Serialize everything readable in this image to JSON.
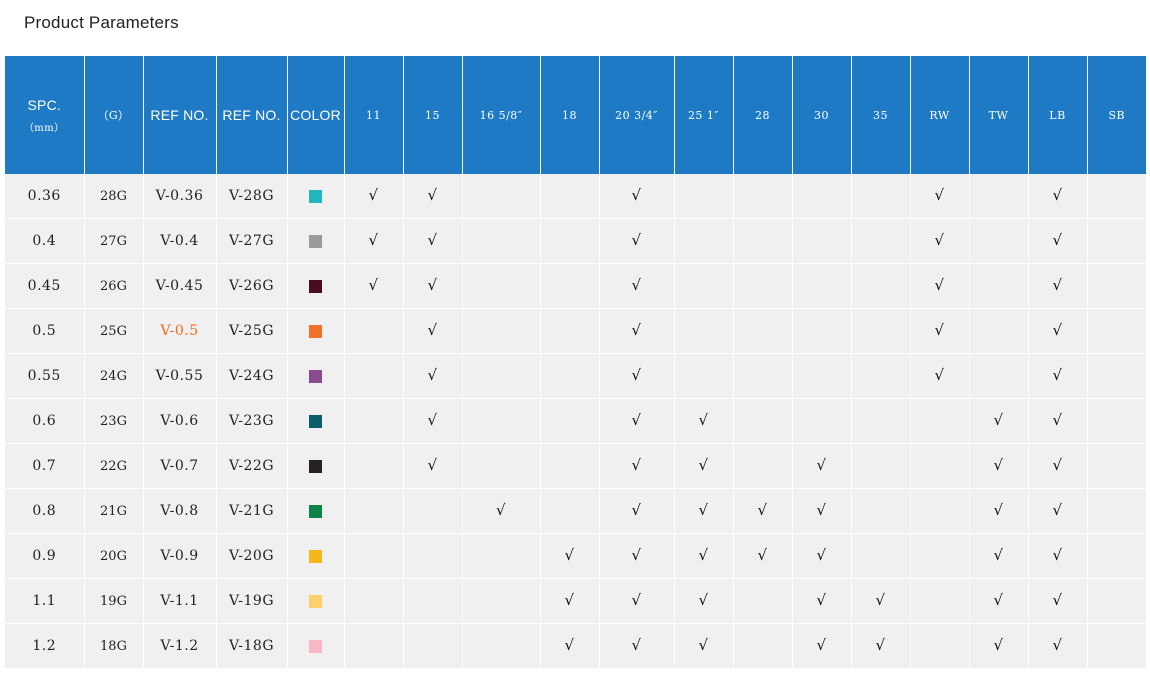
{
  "title": "Product Parameters",
  "headers": {
    "spc": "SPC.",
    "spc_unit": "（mm）",
    "g": "（G）",
    "ref1": "REF NO.",
    "ref2": "REF NO.",
    "color": "COLOR",
    "sizes": [
      "11",
      "15",
      "16 5/8″",
      "18",
      "20 3/4″",
      "25 1″",
      "28",
      "30",
      "35",
      "RW",
      "TW",
      "LB",
      "SB"
    ]
  },
  "check_symbol": "√",
  "rows": [
    {
      "spc": "0.36",
      "g": "28G",
      "ref1": "V-0.36",
      "ref2": "V-28G",
      "color": "#21b5bd",
      "checks": [
        1,
        1,
        0,
        0,
        1,
        0,
        0,
        0,
        0,
        1,
        0,
        1,
        0
      ]
    },
    {
      "spc": "0.4",
      "g": "27G",
      "ref1": "V-0.4",
      "ref2": "V-27G",
      "color": "#9a9a9c",
      "checks": [
        1,
        1,
        0,
        0,
        1,
        0,
        0,
        0,
        0,
        1,
        0,
        1,
        0
      ]
    },
    {
      "spc": "0.45",
      "g": "26G",
      "ref1": "V-0.45",
      "ref2": "V-26G",
      "color": "#4a0d1f",
      "checks": [
        1,
        1,
        0,
        0,
        1,
        0,
        0,
        0,
        0,
        1,
        0,
        1,
        0
      ]
    },
    {
      "spc": "0.5",
      "g": "25G",
      "ref1": "V-0.5",
      "ref2": "V-25G",
      "color": "#f0702a",
      "checks": [
        0,
        1,
        0,
        0,
        1,
        0,
        0,
        0,
        0,
        1,
        0,
        1,
        0
      ],
      "ref1_color": "#ee6b1a"
    },
    {
      "spc": "0.55",
      "g": "24G",
      "ref1": "V-0.55",
      "ref2": "V-24G",
      "color": "#8a4a8e",
      "checks": [
        0,
        1,
        0,
        0,
        1,
        0,
        0,
        0,
        0,
        1,
        0,
        1,
        0
      ]
    },
    {
      "spc": "0.6",
      "g": "23G",
      "ref1": "V-0.6",
      "ref2": "V-23G",
      "color": "#0c5c6a",
      "checks": [
        0,
        1,
        0,
        0,
        1,
        1,
        0,
        0,
        0,
        0,
        1,
        1,
        0
      ]
    },
    {
      "spc": "0.7",
      "g": "22G",
      "ref1": "V-0.7",
      "ref2": "V-22G",
      "color": "#262224",
      "checks": [
        0,
        1,
        0,
        0,
        1,
        1,
        0,
        1,
        0,
        0,
        1,
        1,
        0
      ]
    },
    {
      "spc": "0.8",
      "g": "21G",
      "ref1": "V-0.8",
      "ref2": "V-21G",
      "color": "#0b8446",
      "checks": [
        0,
        0,
        1,
        0,
        1,
        1,
        1,
        1,
        0,
        0,
        1,
        1,
        0
      ]
    },
    {
      "spc": "0.9",
      "g": "20G",
      "ref1": "V-0.9",
      "ref2": "V-20G",
      "color": "#f8b718",
      "checks": [
        0,
        0,
        0,
        1,
        1,
        1,
        1,
        1,
        0,
        0,
        1,
        1,
        0
      ]
    },
    {
      "spc": "1.1",
      "g": "19G",
      "ref1": "V-1.1",
      "ref2": "V-19G",
      "color": "#fdd06b",
      "checks": [
        0,
        0,
        0,
        1,
        1,
        1,
        0,
        1,
        1,
        0,
        1,
        1,
        0
      ]
    },
    {
      "spc": "1.2",
      "g": "18G",
      "ref1": "V-1.2",
      "ref2": "V-18G",
      "color": "#f9b7c5",
      "checks": [
        0,
        0,
        0,
        1,
        1,
        1,
        0,
        1,
        1,
        0,
        1,
        1,
        0
      ]
    }
  ]
}
